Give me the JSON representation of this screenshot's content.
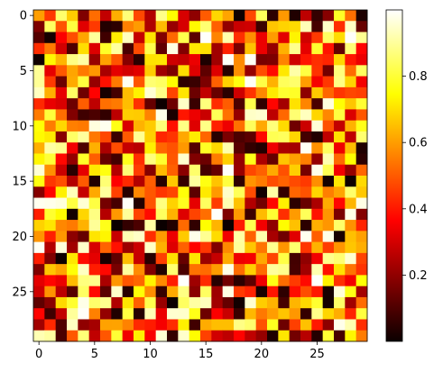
{
  "chart_data": {
    "type": "heatmap",
    "title": "",
    "xlabel": "",
    "ylabel": "",
    "colormap": "hot",
    "rows": 30,
    "cols": 30,
    "seed": 42,
    "vmin": 0.0,
    "vmax": 1.0,
    "xlim": [
      -0.5,
      29.5
    ],
    "ylim": [
      29.5,
      -0.5
    ],
    "x_ticks": [
      0,
      5,
      10,
      15,
      20,
      25
    ],
    "x_tick_labels": [
      "0",
      "5",
      "10",
      "15",
      "20",
      "25"
    ],
    "y_ticks": [
      0,
      5,
      10,
      15,
      20,
      25
    ],
    "y_tick_labels": [
      "0",
      "5",
      "10",
      "15",
      "20",
      "25"
    ],
    "colorbar": {
      "ticks": [
        0.2,
        0.4,
        0.6,
        0.8
      ],
      "tick_labels": [
        "0.2",
        "0.4",
        "0.6",
        "0.8"
      ],
      "range": [
        0.0,
        1.0
      ]
    }
  }
}
